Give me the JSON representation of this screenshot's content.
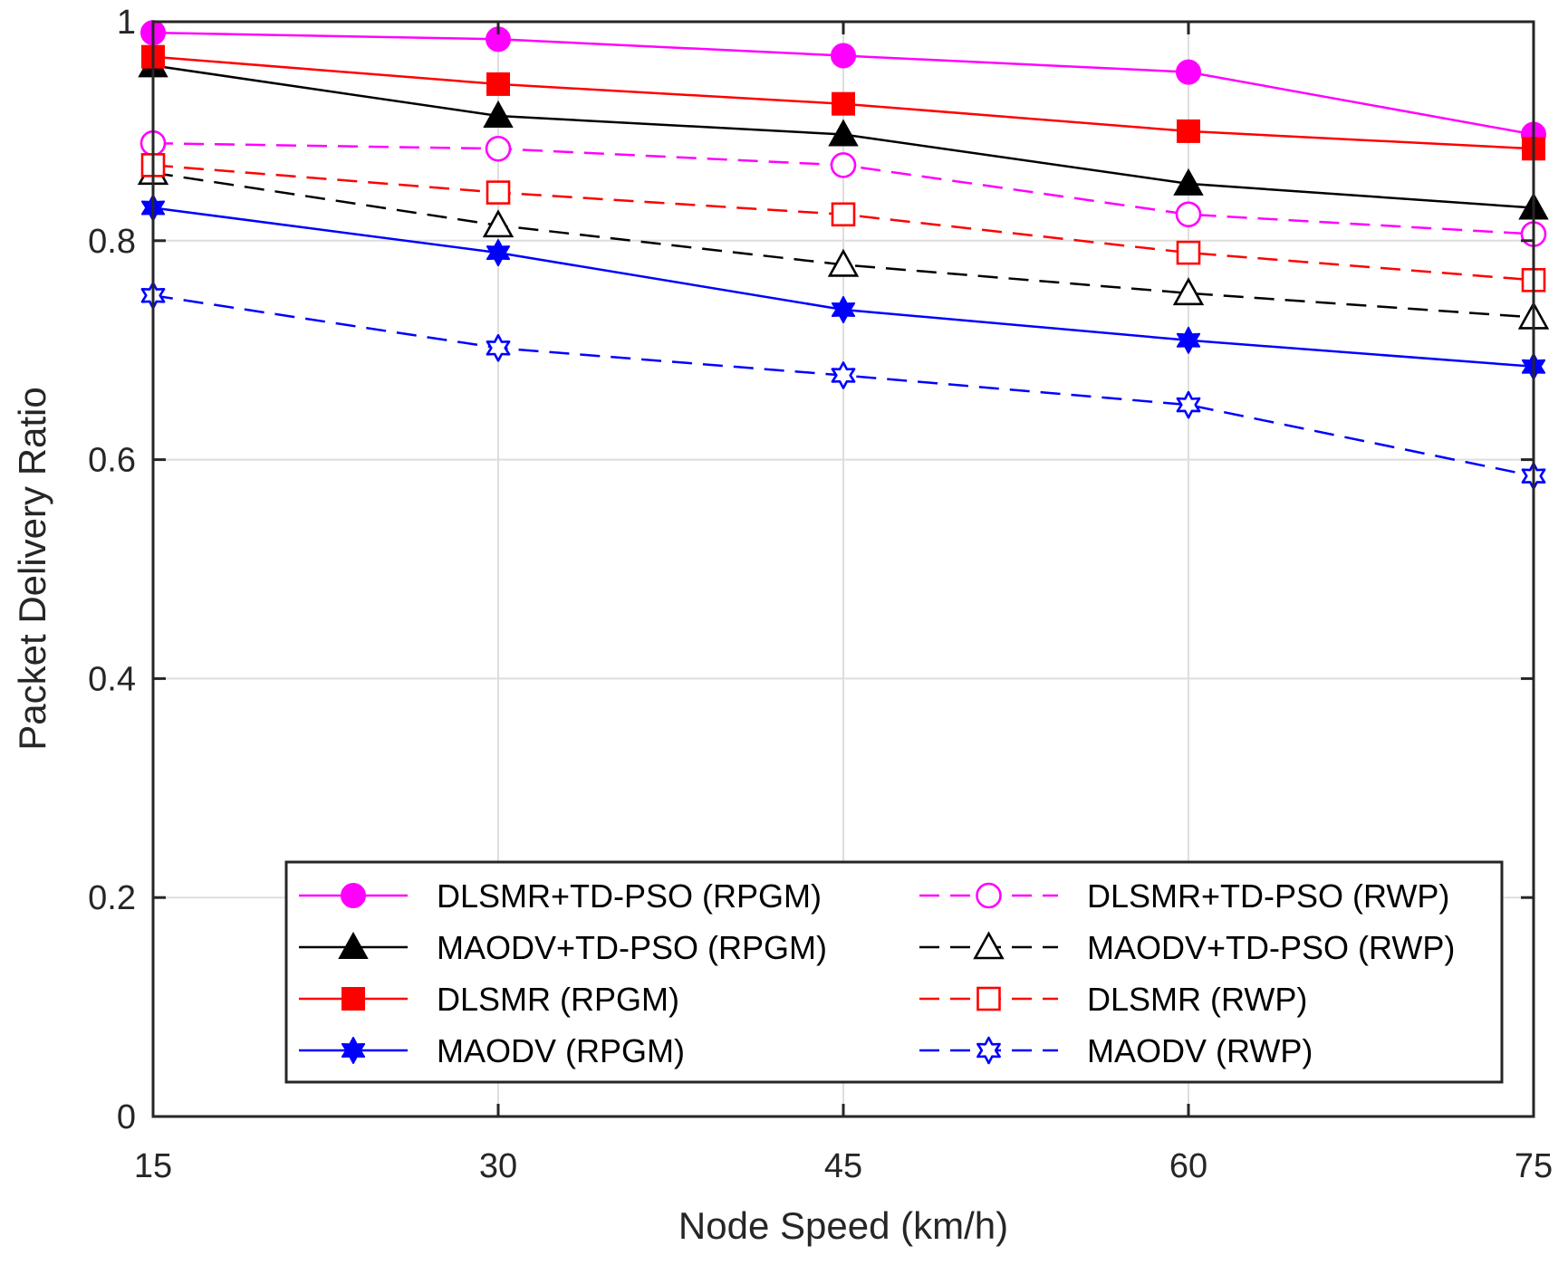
{
  "chart_data": {
    "type": "line",
    "title": "",
    "xlabel": "Node Speed (km/h)",
    "ylabel": "Packet Delivery Ratio",
    "x": [
      15,
      30,
      45,
      60,
      75
    ],
    "xticks": [
      "15",
      "30",
      "45",
      "60",
      "75"
    ],
    "yticks": [
      "0",
      "0.2",
      "0.4",
      "0.6",
      "0.8",
      "1"
    ],
    "xlim": [
      15,
      75
    ],
    "ylim": [
      0,
      1
    ],
    "grid": true,
    "legend_position": "bottom-center",
    "series": [
      {
        "name": "DLSMR+TD-PSO (RPGM)",
        "values": [
          0.99,
          0.984,
          0.969,
          0.954,
          0.897
        ],
        "color": "#ff00ff",
        "dashed": false,
        "marker": "circle",
        "filled": true
      },
      {
        "name": "DLSMR+TD-PSO (RWP)",
        "values": [
          0.889,
          0.884,
          0.869,
          0.824,
          0.806
        ],
        "color": "#ff00ff",
        "dashed": true,
        "marker": "circle",
        "filled": false
      },
      {
        "name": "MAODV+TD-PSO (RPGM)",
        "values": [
          0.96,
          0.914,
          0.897,
          0.852,
          0.83
        ],
        "color": "#000000",
        "dashed": false,
        "marker": "triangle",
        "filled": true
      },
      {
        "name": "MAODV+TD-PSO (RWP)",
        "values": [
          0.862,
          0.814,
          0.778,
          0.752,
          0.73
        ],
        "color": "#000000",
        "dashed": true,
        "marker": "triangle",
        "filled": false
      },
      {
        "name": "DLSMR (RPGM)",
        "values": [
          0.968,
          0.943,
          0.925,
          0.9,
          0.884
        ],
        "color": "#ff0000",
        "dashed": false,
        "marker": "square",
        "filled": true
      },
      {
        "name": "DLSMR (RWP)",
        "values": [
          0.869,
          0.844,
          0.824,
          0.789,
          0.764
        ],
        "color": "#ff0000",
        "dashed": true,
        "marker": "square",
        "filled": false
      },
      {
        "name": "MAODV (RPGM)",
        "values": [
          0.83,
          0.789,
          0.737,
          0.709,
          0.685
        ],
        "color": "#0000ff",
        "dashed": false,
        "marker": "star",
        "filled": true
      },
      {
        "name": "MAODV (RWP)",
        "values": [
          0.75,
          0.702,
          0.677,
          0.65,
          0.585
        ],
        "color": "#0000ff",
        "dashed": true,
        "marker": "star",
        "filled": false
      }
    ]
  }
}
